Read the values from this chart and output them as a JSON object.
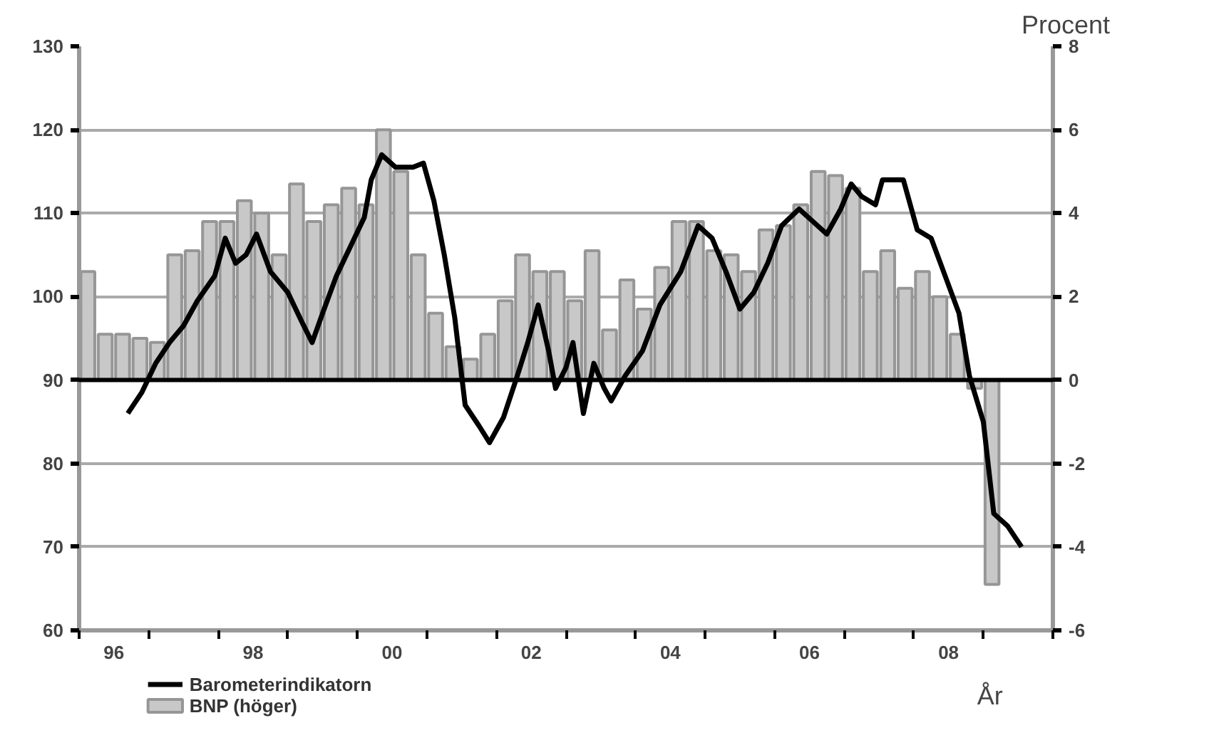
{
  "chart_data": {
    "type": "bar",
    "xlabel": "År",
    "y2label": "Procent",
    "x": [
      1995.625,
      1995.875,
      1996.125,
      1996.375,
      1996.625,
      1996.875,
      1997.125,
      1997.375,
      1997.625,
      1997.875,
      1998.125,
      1998.375,
      1998.625,
      1998.875,
      1999.125,
      1999.375,
      1999.625,
      1999.875,
      2000.125,
      2000.375,
      2000.625,
      2000.875,
      2001.125,
      2001.375,
      2001.625,
      2001.875,
      2002.125,
      2002.375,
      2002.625,
      2002.875,
      2003.125,
      2003.375,
      2003.625,
      2003.875,
      2004.125,
      2004.375,
      2004.625,
      2004.875,
      2005.125,
      2005.375,
      2005.625,
      2005.875,
      2006.125,
      2006.375,
      2006.625,
      2006.875,
      2007.125,
      2007.375,
      2007.625,
      2007.875,
      2008.125,
      2008.375,
      2008.625
    ],
    "series": [
      {
        "name": "Barometerindikatorn",
        "type": "line",
        "color": "#000000",
        "axis": "y",
        "x": [
          1996.2,
          1996.4,
          1996.6,
          1996.8,
          1997.0,
          1997.2,
          1997.45,
          1997.6,
          1997.75,
          1997.9,
          1998.05,
          1998.25,
          1998.5,
          1998.7,
          1998.85,
          1999.0,
          1999.2,
          1999.4,
          1999.6,
          1999.7,
          1999.85,
          2000.05,
          2000.3,
          2000.45,
          2000.6,
          2000.75,
          2000.9,
          2001.05,
          2001.25,
          2001.4,
          2001.6,
          2001.8,
          2001.95,
          2002.1,
          2002.25,
          2002.35,
          2002.5,
          2002.6,
          2002.75,
          2002.9,
          2003.05,
          2003.15,
          2003.35,
          2003.6,
          2003.85,
          2004.15,
          2004.4,
          2004.6,
          2004.8,
          2005.0,
          2005.2,
          2005.4,
          2005.6,
          2005.85,
          2006.05,
          2006.25,
          2006.45,
          2006.6,
          2006.75,
          2006.95,
          2007.05,
          2007.35,
          2007.55,
          2007.75,
          2007.95,
          2008.15,
          2008.3,
          2008.5,
          2008.65,
          2008.85,
          2009.05
        ],
        "values": [
          86,
          88.5,
          92,
          94.5,
          96.5,
          99.5,
          102.5,
          107,
          104,
          105,
          107.5,
          103,
          100.5,
          97,
          94.5,
          98,
          102.5,
          106,
          109.5,
          114,
          117,
          115.5,
          115.5,
          116,
          111.5,
          105,
          97.5,
          87,
          84.5,
          82.5,
          85.5,
          90.5,
          94.5,
          99,
          93.5,
          89,
          91.5,
          94.5,
          86,
          92,
          89,
          87.5,
          90.5,
          93.5,
          99,
          103,
          108.5,
          107,
          103,
          98.5,
          100.5,
          104,
          108.5,
          110.5,
          109,
          107.5,
          110.5,
          113.5,
          112,
          111,
          114,
          114,
          108,
          107,
          102.5,
          98,
          90.5,
          85,
          74,
          72.5,
          70
        ]
      },
      {
        "name": "BNP (höger)",
        "color": "#c8c8c8",
        "axis": "y2",
        "values": [
          2.6,
          1.1,
          1.1,
          1.0,
          0.9,
          3.0,
          3.1,
          3.8,
          3.8,
          4.3,
          4.0,
          3.0,
          4.7,
          3.8,
          4.2,
          4.6,
          4.2,
          6.0,
          5.0,
          3.0,
          1.6,
          0.8,
          0.5,
          1.1,
          1.9,
          3.0,
          2.6,
          2.6,
          1.9,
          3.1,
          1.2,
          2.4,
          1.7,
          2.7,
          3.8,
          3.8,
          3.1,
          3.0,
          2.6,
          3.6,
          3.7,
          4.2,
          5.0,
          4.9,
          4.6,
          2.6,
          3.1,
          2.2,
          2.6,
          2.0,
          1.1,
          -0.2,
          -4.9
        ]
      }
    ],
    "xlim": [
      1995.5,
      2009.5
    ],
    "xticks": [
      {
        "value": 1995.5,
        "label": null
      },
      {
        "value": 1996,
        "label": "96"
      },
      {
        "value": 1996.5,
        "label": null
      },
      {
        "value": 1997.5,
        "label": null
      },
      {
        "value": 1998,
        "label": "98"
      },
      {
        "value": 1998.5,
        "label": null
      },
      {
        "value": 1999.5,
        "label": null
      },
      {
        "value": 2000,
        "label": "00"
      },
      {
        "value": 2000.5,
        "label": null
      },
      {
        "value": 2001.5,
        "label": null
      },
      {
        "value": 2002,
        "label": "02"
      },
      {
        "value": 2002.5,
        "label": null
      },
      {
        "value": 2003.5,
        "label": null
      },
      {
        "value": 2004,
        "label": "04"
      },
      {
        "value": 2004.5,
        "label": null
      },
      {
        "value": 2005.5,
        "label": null
      },
      {
        "value": 2006,
        "label": "06"
      },
      {
        "value": 2006.5,
        "label": null
      },
      {
        "value": 2007.5,
        "label": null
      },
      {
        "value": 2008,
        "label": "08"
      },
      {
        "value": 2008.5,
        "label": null
      },
      {
        "value": 2009.5,
        "label": null
      }
    ],
    "ylim": [
      60,
      130
    ],
    "yticks": [
      60,
      70,
      80,
      90,
      100,
      110,
      120,
      130
    ],
    "y2lim": [
      -6,
      8
    ],
    "y2ticks": [
      -6,
      -4,
      -2,
      0,
      2,
      4,
      6,
      8
    ],
    "ref_lines": [
      {
        "axis": "y2",
        "value": 0,
        "color": "#000000"
      }
    ],
    "grid": "y",
    "legend": "bottom left"
  }
}
